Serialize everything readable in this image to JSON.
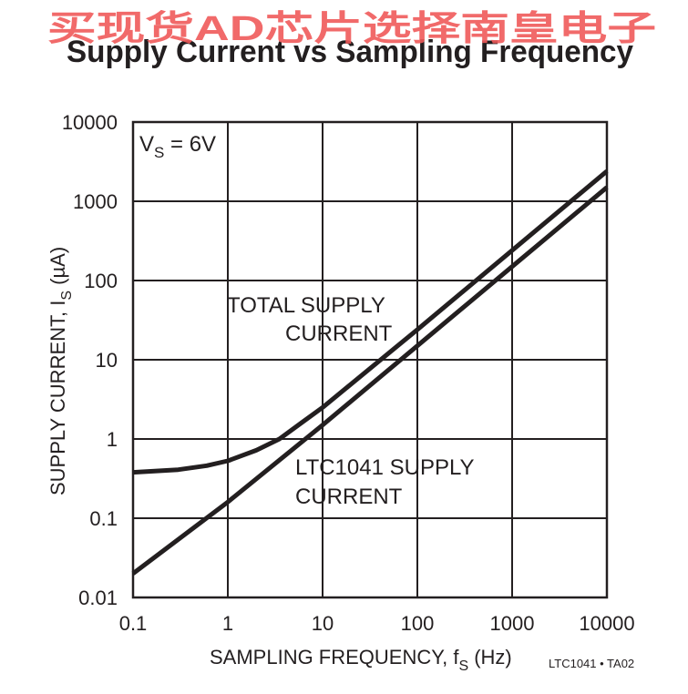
{
  "watermark": "买现货AD芯片选择南皇电子",
  "chart_data": {
    "type": "line",
    "title": "Supply Current vs Sampling Frequency",
    "xlabel": {
      "main": "SAMPLING FREQUENCY, f",
      "sub": "S",
      "unit": " (Hz)"
    },
    "ylabel": {
      "main": "SUPPLY CURRENT, I",
      "sub": "S",
      "unit": " (µA)"
    },
    "x_scale": "log",
    "y_scale": "log",
    "xlim": [
      0.1,
      10000
    ],
    "ylim": [
      0.01,
      10000
    ],
    "grid": true,
    "x_ticks": [
      {
        "value": 0.1,
        "label": "0.1"
      },
      {
        "value": 1,
        "label": "1"
      },
      {
        "value": 10,
        "label": "10"
      },
      {
        "value": 100,
        "label": "100"
      },
      {
        "value": 1000,
        "label": "1000"
      },
      {
        "value": 10000,
        "label": "10000"
      }
    ],
    "y_ticks": [
      {
        "value": 0.01,
        "label": "0.01"
      },
      {
        "value": 0.1,
        "label": "0.1"
      },
      {
        "value": 1,
        "label": "1"
      },
      {
        "value": 10,
        "label": "10"
      },
      {
        "value": 100,
        "label": "100"
      },
      {
        "value": 1000,
        "label": "1000"
      },
      {
        "value": 10000,
        "label": "10000"
      }
    ],
    "condition": {
      "main": "V",
      "sub": "S",
      "rest": " = 6V"
    },
    "series": [
      {
        "name": "TOTAL SUPPLY CURRENT",
        "x": [
          0.1,
          0.3,
          0.6,
          1,
          2,
          3.5,
          6,
          10,
          100,
          1000,
          10000
        ],
        "y": [
          0.38,
          0.41,
          0.46,
          0.53,
          0.72,
          1.0,
          1.6,
          2.5,
          24,
          240,
          2400
        ]
      },
      {
        "name": "LTC1041 SUPPLY CURRENT",
        "x": [
          0.1,
          1,
          10,
          100,
          1000,
          10000
        ],
        "y": [
          0.02,
          0.16,
          1.5,
          15,
          150,
          1500
        ]
      }
    ],
    "annotations": [
      {
        "lines": [
          "TOTAL SUPPLY",
          "CURRENT"
        ]
      },
      {
        "lines": [
          "LTC1041 SUPPLY",
          "CURRENT"
        ]
      }
    ],
    "figure_code": "LTC1041 • TA02"
  }
}
